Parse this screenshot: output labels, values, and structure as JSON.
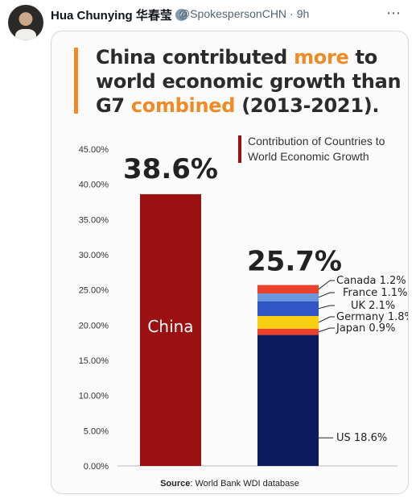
{
  "tweet": {
    "author": "Hua Chunying 华春莹",
    "handle": "@SpokespersonCHN",
    "separator": "·",
    "time": "9h",
    "more_icon": "more-horizontal-icon",
    "verified_icon": "verified-badge-icon",
    "verified_color": "#829aab"
  },
  "infographic": {
    "headline_parts": [
      {
        "text": "China contributed ",
        "highlight": false
      },
      {
        "text": "more",
        "highlight": true
      },
      {
        "text": " to world economic growth than G7 ",
        "highlight": false
      },
      {
        "text": "combined",
        "highlight": true
      },
      {
        "text": " (2013-2021).",
        "highlight": false
      }
    ],
    "legend_label": "Contribution of Countries to World Economic Growth",
    "source_label": "Source",
    "source_text": ": World Bank WDI database",
    "accent_color": "#f08a24",
    "china_color": "#9b1010"
  },
  "chart_data": {
    "type": "bar",
    "ylim": [
      0,
      45
    ],
    "y_ticks": [
      "0.00%",
      "5.00%",
      "10.00%",
      "15.00%",
      "20.00%",
      "25.00%",
      "30.00%",
      "35.00%",
      "40.00%",
      "45.00%"
    ],
    "y_tick_values": [
      0,
      5,
      10,
      15,
      20,
      25,
      30,
      35,
      40,
      45
    ],
    "bars": [
      {
        "label": "China",
        "total_label": "38.6%",
        "segments": [
          {
            "name": "China",
            "value": 38.6,
            "color": "#9b1010"
          }
        ]
      },
      {
        "label": "",
        "total_label": "25.7%",
        "segments": [
          {
            "name": "US 18.6%",
            "value": 18.6,
            "color": "#0c1c5c"
          },
          {
            "name": "Japan 0.9%",
            "value": 0.9,
            "color": "#e8412c"
          },
          {
            "name": "Germany 1.8%",
            "value": 1.8,
            "color": "#f7cf13"
          },
          {
            "name": "UK 2.1%",
            "value": 2.1,
            "color": "#2f56c4"
          },
          {
            "name": "France 1.1%",
            "value": 1.1,
            "color": "#6996dc"
          },
          {
            "name": "Canada 1.2%",
            "value": 1.2,
            "color": "#e8412c"
          }
        ]
      }
    ]
  }
}
